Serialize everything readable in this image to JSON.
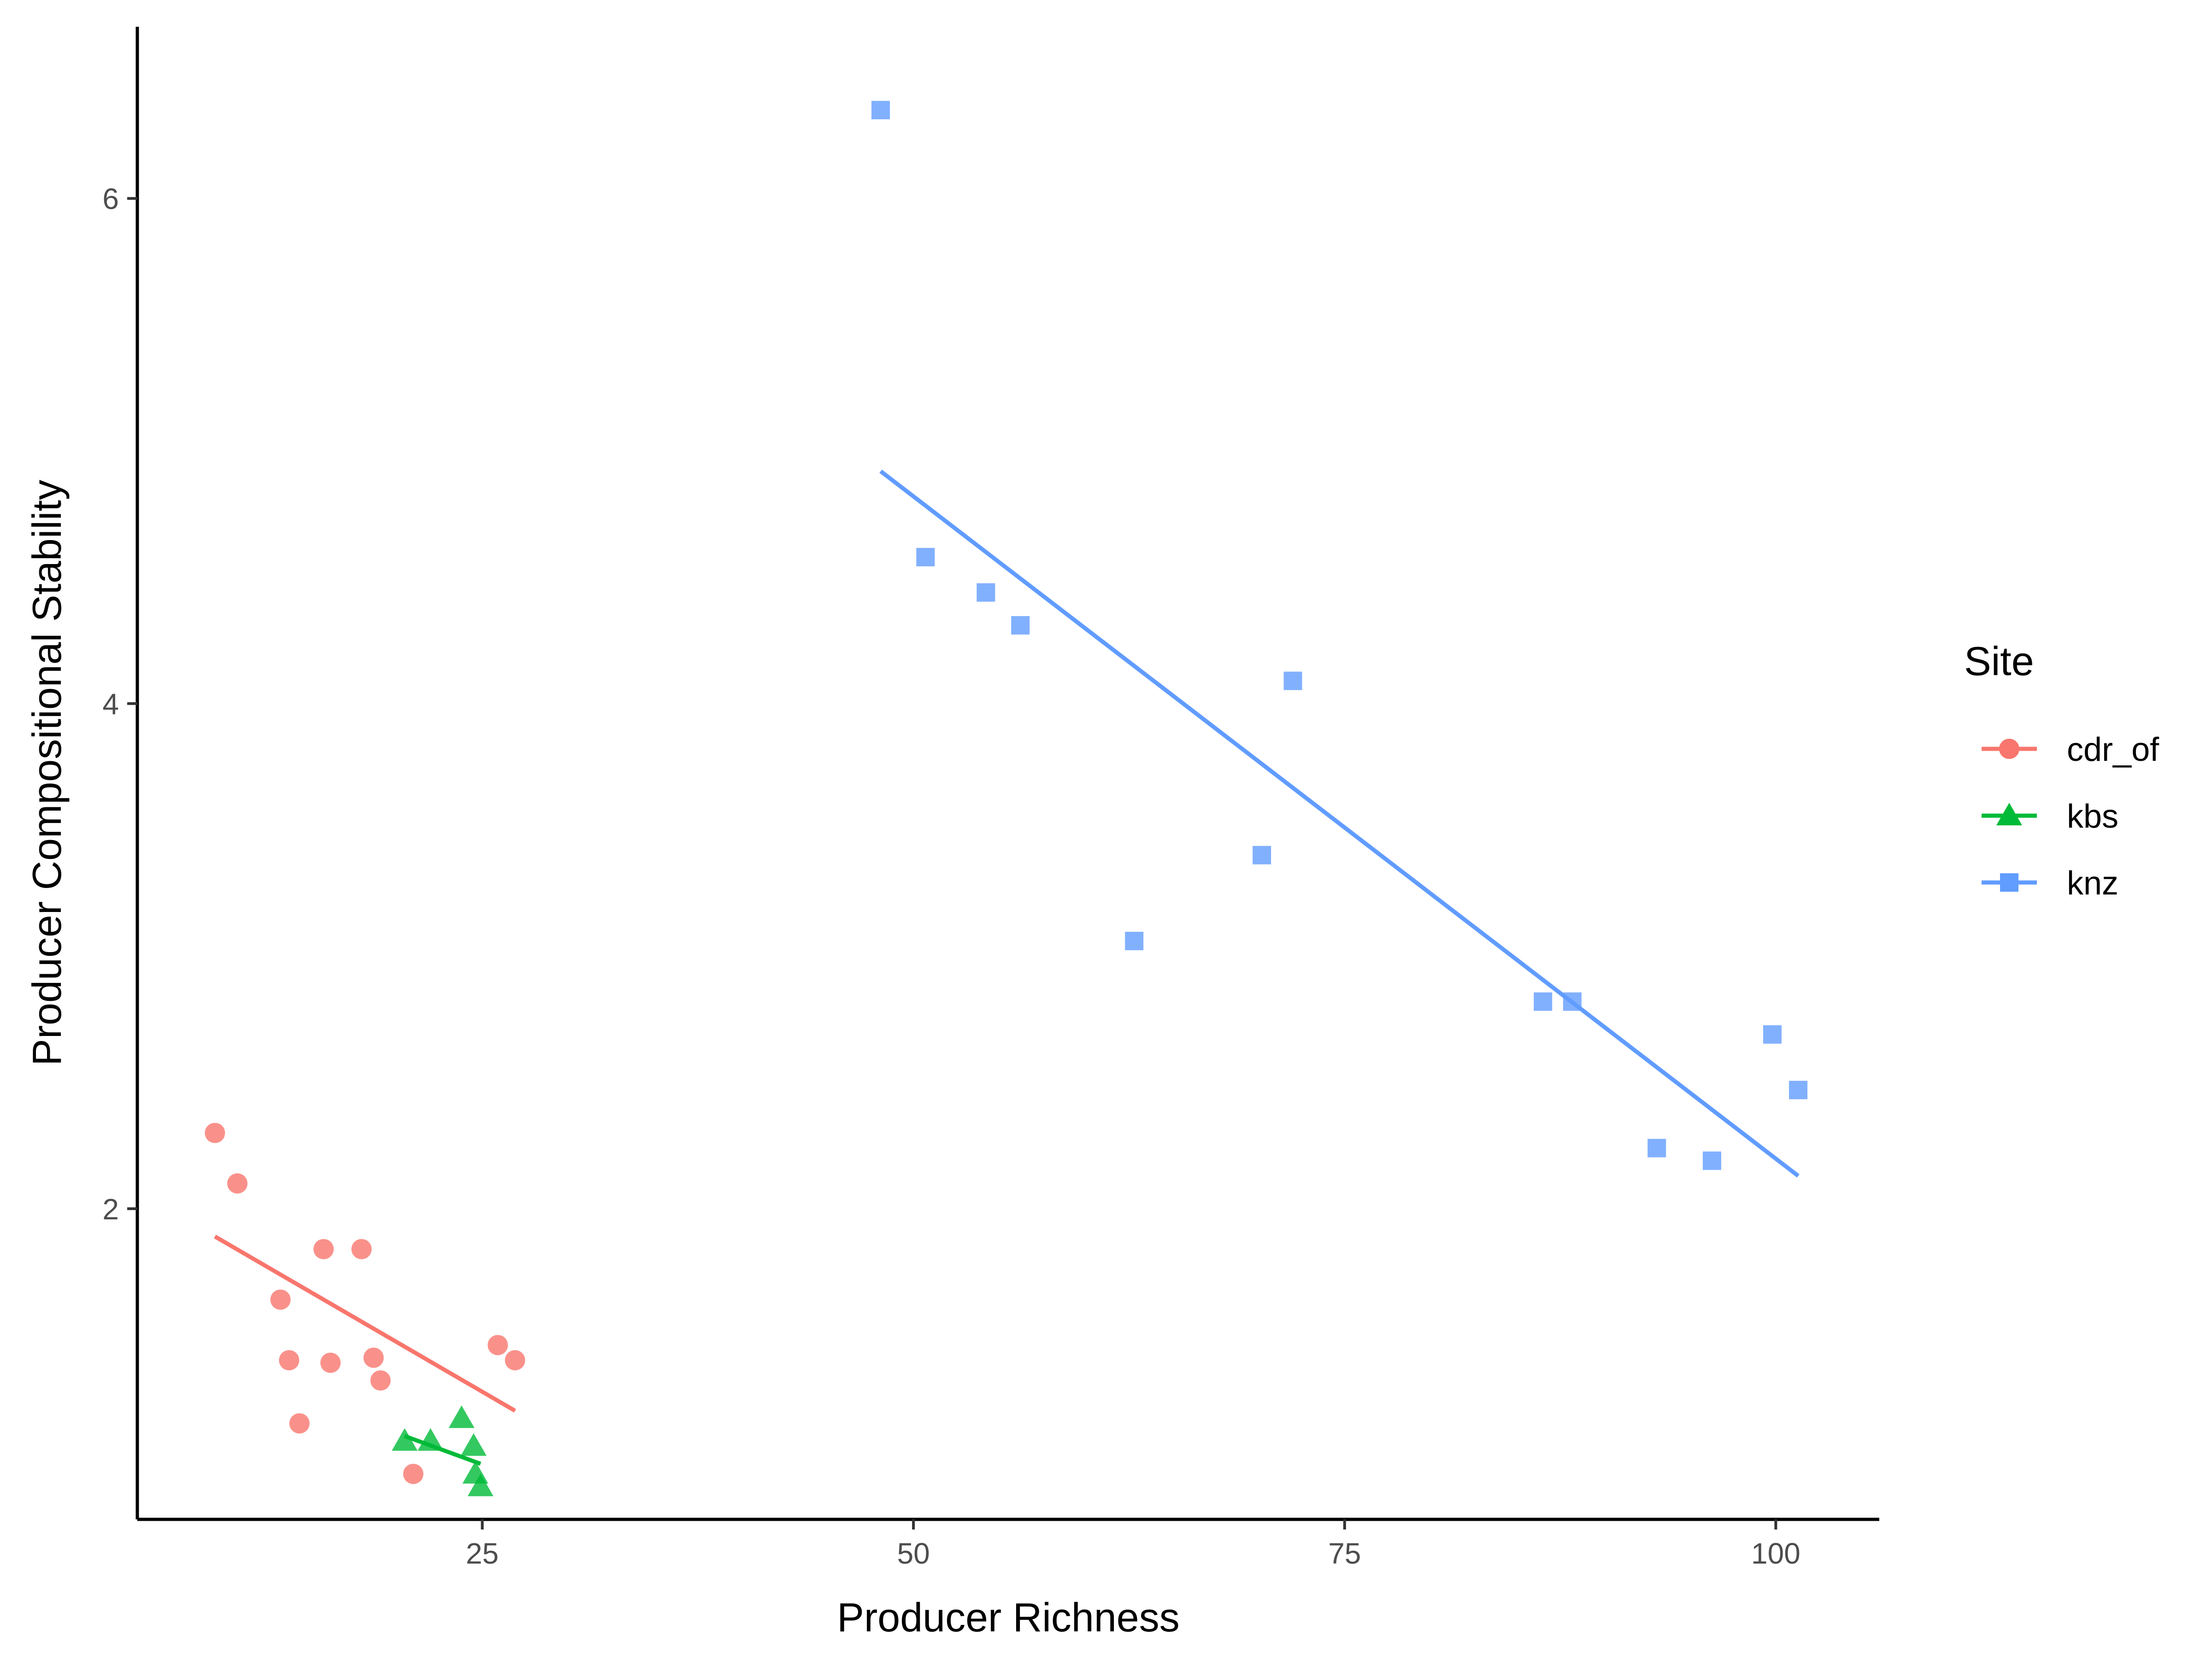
{
  "chart_data": {
    "type": "scatter",
    "title": "",
    "xlabel": "Producer Richness",
    "ylabel": "Producer Compositional Stability",
    "xlim": [
      5,
      106
    ],
    "ylim": [
      0.77,
      6.68
    ],
    "x_ticks": [
      25,
      50,
      75,
      100
    ],
    "y_ticks": [
      2,
      4,
      6
    ],
    "grid": false,
    "legend": {
      "title": "Site",
      "position": "right"
    },
    "series": [
      {
        "name": "cdr_of",
        "color": "#F8766D",
        "marker": "circle",
        "points": [
          {
            "x": 9.5,
            "y": 2.3
          },
          {
            "x": 10.8,
            "y": 2.1
          },
          {
            "x": 13.3,
            "y": 1.64
          },
          {
            "x": 13.8,
            "y": 1.4
          },
          {
            "x": 14.4,
            "y": 1.15
          },
          {
            "x": 15.8,
            "y": 1.84
          },
          {
            "x": 16.2,
            "y": 1.39
          },
          {
            "x": 18.0,
            "y": 1.84
          },
          {
            "x": 18.7,
            "y": 1.41
          },
          {
            "x": 19.1,
            "y": 1.32
          },
          {
            "x": 21.0,
            "y": 0.95
          },
          {
            "x": 25.9,
            "y": 1.46
          },
          {
            "x": 26.9,
            "y": 1.4
          }
        ],
        "trend": {
          "x": [
            9.5,
            26.9
          ],
          "y": [
            1.89,
            1.2
          ]
        }
      },
      {
        "name": "kbs",
        "color": "#00BA38",
        "marker": "triangle",
        "points": [
          {
            "x": 20.5,
            "y": 1.08
          },
          {
            "x": 22.0,
            "y": 1.08
          },
          {
            "x": 23.8,
            "y": 1.17
          },
          {
            "x": 24.5,
            "y": 1.06
          },
          {
            "x": 24.6,
            "y": 0.95
          },
          {
            "x": 24.9,
            "y": 0.9
          }
        ],
        "trend": {
          "x": [
            20.5,
            24.9
          ],
          "y": [
            1.1,
            0.99
          ]
        }
      },
      {
        "name": "knz",
        "color": "#619CFF",
        "marker": "square",
        "points": [
          {
            "x": 48.1,
            "y": 6.35
          },
          {
            "x": 50.7,
            "y": 4.58
          },
          {
            "x": 54.2,
            "y": 4.44
          },
          {
            "x": 56.2,
            "y": 4.31
          },
          {
            "x": 62.8,
            "y": 3.06
          },
          {
            "x": 70.2,
            "y": 3.4
          },
          {
            "x": 72.0,
            "y": 4.09
          },
          {
            "x": 86.5,
            "y": 2.82
          },
          {
            "x": 88.2,
            "y": 2.82
          },
          {
            "x": 93.1,
            "y": 2.24
          },
          {
            "x": 96.3,
            "y": 2.19
          },
          {
            "x": 99.8,
            "y": 2.69
          },
          {
            "x": 101.3,
            "y": 2.47
          }
        ],
        "trend": {
          "x": [
            48.1,
            101.3
          ],
          "y": [
            4.92,
            2.13
          ]
        }
      }
    ]
  }
}
